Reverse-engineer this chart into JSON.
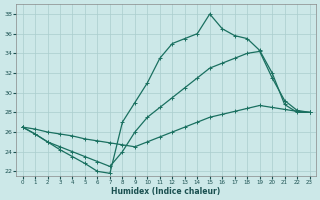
{
  "title": "",
  "xlabel": "Humidex (Indice chaleur)",
  "xlim": [
    -0.5,
    23.5
  ],
  "ylim": [
    21.5,
    39.0
  ],
  "xticks": [
    0,
    1,
    2,
    3,
    4,
    5,
    6,
    7,
    8,
    9,
    10,
    11,
    12,
    13,
    14,
    15,
    16,
    17,
    18,
    19,
    20,
    21,
    22,
    23
  ],
  "yticks": [
    22,
    24,
    26,
    28,
    30,
    32,
    34,
    36,
    38
  ],
  "bg_color": "#cce8e8",
  "grid_color": "#aacece",
  "line_color": "#1a7060",
  "line1_x": [
    0,
    1,
    2,
    3,
    4,
    5,
    6,
    7,
    8,
    9,
    10,
    11,
    12,
    13,
    14,
    15,
    16,
    17,
    18,
    19,
    20,
    21,
    22,
    23
  ],
  "line1_y": [
    26.5,
    25.8,
    25.0,
    24.2,
    23.5,
    22.8,
    22.0,
    21.8,
    27.0,
    29.0,
    31.0,
    33.5,
    35.0,
    35.5,
    36.0,
    38.0,
    36.5,
    35.8,
    35.5,
    34.3,
    32.0,
    28.8,
    28.0,
    28.0
  ],
  "line2_x": [
    0,
    1,
    2,
    3,
    4,
    5,
    6,
    7,
    8,
    9,
    10,
    11,
    12,
    13,
    14,
    15,
    16,
    17,
    18,
    19,
    20,
    21,
    22,
    23
  ],
  "line2_y": [
    26.5,
    25.8,
    25.0,
    24.5,
    24.0,
    23.5,
    23.0,
    22.5,
    24.0,
    26.0,
    27.5,
    28.5,
    29.5,
    30.5,
    31.5,
    32.5,
    33.0,
    33.5,
    34.0,
    34.2,
    31.5,
    29.2,
    28.2,
    28.0
  ],
  "line3_x": [
    0,
    1,
    2,
    3,
    4,
    5,
    6,
    7,
    8,
    9,
    10,
    11,
    12,
    13,
    14,
    15,
    16,
    17,
    18,
    19,
    20,
    21,
    22,
    23
  ],
  "line3_y": [
    26.5,
    26.3,
    26.0,
    25.8,
    25.6,
    25.3,
    25.1,
    24.9,
    24.7,
    24.5,
    25.0,
    25.5,
    26.0,
    26.5,
    27.0,
    27.5,
    27.8,
    28.1,
    28.4,
    28.7,
    28.5,
    28.3,
    28.1,
    28.0
  ],
  "figsize": [
    3.2,
    2.0
  ],
  "dpi": 100
}
